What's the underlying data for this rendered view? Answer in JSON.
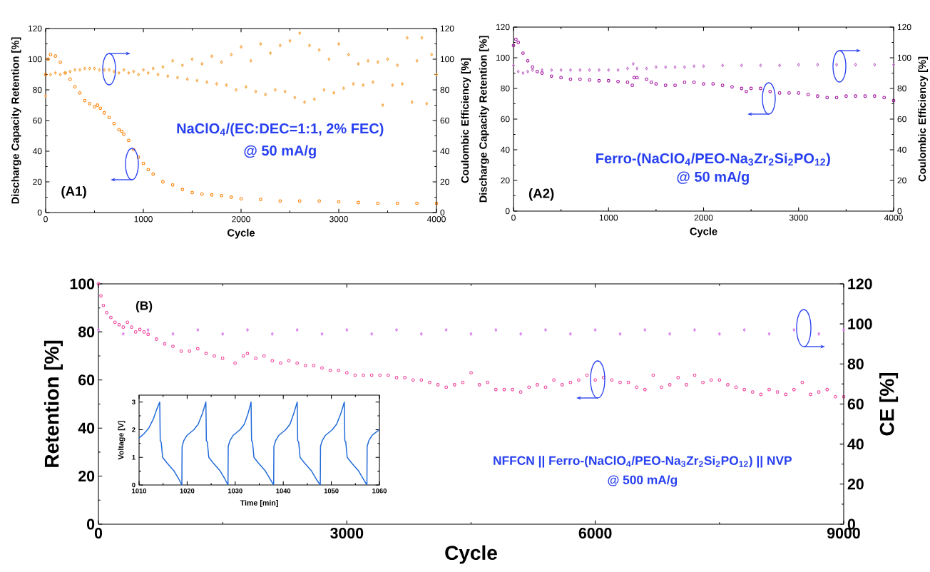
{
  "chart_data": [
    {
      "type": "scatter",
      "title": "(A1)",
      "xlabel": "Cycle",
      "ylabel": "Discharge Capacity Retention [%]",
      "y2label": "Coulombic Efficiency [%]",
      "marker": "circle",
      "annotations": [
        "NaClO$_{4}$/(EC:DEC=1:1, 2% FEC)",
        "@ 50 mA/g"
      ],
      "xlim": [
        0,
        4000
      ],
      "xticks": [
        0,
        1000,
        2000,
        3000,
        4000
      ],
      "ylim": [
        0,
        120
      ],
      "yticks": [
        0,
        20,
        40,
        60,
        80,
        100,
        120
      ],
      "y2lim": [
        0,
        120
      ],
      "y2ticks": [
        0,
        20,
        40,
        60,
        80,
        100,
        120
      ],
      "series": [
        {
          "color": "#ff8000",
          "x": [
            0,
            25,
            50,
            100,
            150,
            200,
            250,
            300,
            350,
            400,
            450,
            500,
            530,
            560,
            600,
            650,
            700,
            750,
            780,
            800,
            850,
            900,
            950,
            1000,
            1050,
            1100,
            1200,
            1300,
            1400,
            1500,
            1600,
            1700,
            1800,
            1900,
            2000,
            2200,
            2400,
            2600,
            2800,
            3000,
            3200,
            3400,
            3600,
            3800,
            4000
          ],
          "values": [
            90,
            100,
            103,
            102,
            98,
            91,
            87,
            82,
            78,
            73,
            71,
            69,
            70,
            68,
            65,
            62,
            58,
            54,
            53,
            51,
            47,
            41,
            36,
            32,
            28,
            25,
            20,
            18,
            15,
            13,
            12,
            11.5,
            11,
            10,
            9,
            8.5,
            7.5,
            7.5,
            7.5,
            7,
            6.5,
            6,
            6,
            6,
            6
          ]
        },
        {
          "color": "#f5a540",
          "marker": "diamond",
          "axis": "y2",
          "x": [
            0,
            50,
            100,
            150,
            200,
            250,
            300,
            350,
            400,
            450,
            500,
            550,
            600,
            650,
            700,
            750,
            800,
            850,
            900,
            950,
            1000,
            1050,
            1100,
            1150,
            1200,
            1250,
            1300,
            1350,
            1400,
            1450,
            1500,
            1550,
            1600,
            1650,
            1700,
            1750,
            1800,
            1850,
            1900,
            1950,
            2000,
            2050,
            2100,
            2150,
            2200,
            2250,
            2300,
            2350,
            2400,
            2450,
            2500,
            2550,
            2600,
            2650,
            2700,
            2750,
            2800,
            2850,
            2900,
            2950,
            3000,
            3050,
            3100,
            3150,
            3200,
            3250,
            3300,
            3350,
            3400,
            3450,
            3500,
            3550,
            3600,
            3650,
            3700,
            3750,
            3800,
            3850,
            3900,
            3950,
            4000
          ],
          "values": [
            76,
            90,
            91,
            90,
            91,
            92,
            93,
            93,
            94,
            94,
            94,
            93,
            93,
            93,
            92,
            91,
            93,
            91,
            92,
            90,
            93,
            91,
            94,
            90,
            95,
            89,
            99,
            88,
            96,
            87,
            100,
            86,
            97,
            85,
            102,
            84,
            98,
            83,
            103,
            80,
            108,
            82,
            99,
            79,
            110,
            77,
            104,
            80,
            109,
            79,
            112,
            75,
            117,
            72,
            109,
            74,
            106,
            80,
            100,
            78,
            110,
            81,
            103,
            84,
            97,
            83,
            99,
            85,
            98,
            70,
            100,
            83,
            96,
            84,
            114,
            72,
            99,
            114,
            71,
            103,
            90
          ]
        }
      ]
    },
    {
      "type": "scatter",
      "title": "(A2)",
      "xlabel": "Cycle",
      "ylabel": "Discharge Capacity Retention [%]",
      "y2label": "Coulombic Efficiency [%]",
      "marker": "circle",
      "annotations": [
        "Ferro-(NaClO$_{4}$/PEO-Na$_{3}$Zr$_{2}$Si$_{2}$PO$_{12}$)",
        "@ 50 mA/g"
      ],
      "xlim": [
        0,
        4000
      ],
      "xticks": [
        0,
        1000,
        2000,
        3000,
        4000
      ],
      "ylim": [
        0,
        120
      ],
      "yticks": [
        0,
        20,
        40,
        60,
        80,
        100,
        120
      ],
      "y2lim": [
        0,
        120
      ],
      "y2ticks": [
        0,
        20,
        40,
        60,
        80,
        100,
        120
      ],
      "series": [
        {
          "color": "#a3129f",
          "x": [
            0,
            25,
            50,
            100,
            150,
            200,
            250,
            300,
            400,
            500,
            600,
            700,
            800,
            900,
            1000,
            1100,
            1200,
            1250,
            1270,
            1300,
            1400,
            1450,
            1500,
            1600,
            1700,
            1800,
            1900,
            2000,
            2100,
            2200,
            2300,
            2400,
            2450,
            2500,
            2600,
            2700,
            2800,
            2900,
            3000,
            3100,
            3200,
            3300,
            3400,
            3500,
            3600,
            3700,
            3800,
            3900,
            4000
          ],
          "values": [
            108,
            112,
            110,
            103,
            98,
            94,
            91,
            90,
            88,
            87,
            86,
            86,
            85.5,
            85,
            85,
            84.5,
            84,
            82,
            87,
            87,
            86,
            84,
            83,
            82,
            82,
            84,
            84,
            83,
            83,
            82,
            81,
            80,
            78,
            80,
            80,
            78,
            77,
            77,
            77,
            76,
            75,
            74,
            74,
            75,
            75,
            75,
            75,
            74,
            72
          ]
        },
        {
          "color": "#c476cc",
          "marker": "diamond",
          "axis": "y2",
          "x": [
            0,
            50,
            100,
            150,
            200,
            300,
            400,
            500,
            600,
            700,
            800,
            900,
            1000,
            1100,
            1200,
            1260,
            1300,
            1400,
            1500,
            1600,
            1700,
            1800,
            1900,
            2000,
            2200,
            2400,
            2600,
            2800,
            3000,
            3200,
            3400,
            3600,
            3800,
            4000
          ],
          "values": [
            95,
            91,
            90,
            91,
            92,
            92,
            92,
            92,
            92,
            92,
            92,
            92,
            92,
            92,
            93,
            96,
            93,
            93,
            94,
            94,
            94,
            94,
            94.5,
            94.5,
            95,
            95,
            95,
            95,
            95.5,
            95.5,
            95.5,
            95.5,
            95.5,
            95.5
          ]
        }
      ]
    },
    {
      "type": "scatter",
      "title": "(B)",
      "xlabel": "Cycle",
      "ylabel": "Retention [%]",
      "y2label": "CE [%]",
      "marker": "circle",
      "annotations": [
        "NFFCN || Ferro-(NaClO$_{4}$/PEO-Na$_{3}$Zr$_{2}$Si$_{2}$PO$_{12}$) || NVP",
        "@ 500 mA/g"
      ],
      "xlim": [
        0,
        9000
      ],
      "xticks": [
        0,
        3000,
        6000,
        9000
      ],
      "ylim": [
        0,
        100
      ],
      "yticks": [
        0,
        20,
        40,
        60,
        80,
        100
      ],
      "y2lim": [
        0,
        120
      ],
      "y2ticks": [
        0,
        20,
        40,
        60,
        80,
        100,
        120
      ],
      "series": [
        {
          "color": "#f0449c",
          "x": [
            0,
            30,
            60,
            100,
            150,
            200,
            250,
            300,
            350,
            400,
            450,
            500,
            550,
            600,
            700,
            800,
            900,
            1000,
            1100,
            1200,
            1300,
            1400,
            1500,
            1650,
            1750,
            1800,
            1900,
            2000,
            2100,
            2200,
            2300,
            2400,
            2500,
            2600,
            2700,
            2800,
            2900,
            3000,
            3100,
            3200,
            3300,
            3400,
            3500,
            3600,
            3700,
            3800,
            3900,
            4000,
            4100,
            4200,
            4300,
            4400,
            4500,
            4600,
            4700,
            4800,
            4900,
            5000,
            5100,
            5200,
            5300,
            5400,
            5500,
            5600,
            5700,
            5800,
            5900,
            6000,
            6100,
            6200,
            6300,
            6400,
            6500,
            6600,
            6700,
            6800,
            6900,
            7000,
            7100,
            7200,
            7300,
            7400,
            7500,
            7600,
            7700,
            7800,
            7900,
            8000,
            8100,
            8200,
            8300,
            8400,
            8500,
            8600,
            8700,
            8800,
            8900,
            9000
          ],
          "values": [
            100,
            95,
            91,
            88,
            86,
            84,
            83,
            82,
            84,
            82,
            80,
            81,
            80,
            79,
            77,
            75,
            74,
            72,
            72,
            73,
            71,
            70,
            69,
            67,
            70,
            71,
            69,
            70,
            68,
            67,
            68,
            67,
            66,
            66,
            65,
            64,
            64,
            63,
            62,
            62,
            62,
            62,
            62,
            61,
            61,
            60,
            60,
            59,
            58,
            57,
            58,
            59,
            63,
            58,
            59,
            56,
            56,
            56,
            55,
            57,
            58,
            57,
            60,
            58,
            59,
            60,
            62,
            60,
            61,
            60,
            59,
            59,
            57,
            56,
            62,
            57,
            58,
            61,
            58,
            62,
            59,
            60,
            60,
            58,
            57,
            56,
            55,
            54,
            56,
            55,
            54,
            56,
            59,
            54,
            55,
            56,
            53,
            53
          ]
        },
        {
          "color": "#d878ec",
          "marker": "diamond",
          "axis": "y2",
          "x": [
            0,
            300,
            600,
            900,
            1200,
            1500,
            1800,
            2100,
            2400,
            2700,
            3000,
            3300,
            3600,
            3900,
            4200,
            4500,
            4800,
            5100,
            5400,
            5700,
            6000,
            6300,
            6600,
            6900,
            7200,
            7500,
            7800,
            8100,
            8400,
            8700,
            9000
          ],
          "values": [
            97,
            95,
            97,
            95,
            97,
            95,
            97,
            95,
            97,
            95,
            97,
            95,
            97,
            95,
            97,
            95,
            97,
            95,
            97,
            95,
            97,
            95,
            97,
            95,
            97,
            95,
            97,
            95,
            97,
            95,
            97
          ]
        }
      ]
    },
    {
      "type": "line",
      "xlabel": "Time [min]",
      "ylabel": "Voltage [V]",
      "xlim": [
        1010,
        1060
      ],
      "xticks": [
        1010,
        1020,
        1030,
        1040,
        1050,
        1060
      ],
      "ylim": [
        0,
        3.25
      ],
      "yticks": [
        0,
        1,
        2,
        3
      ],
      "series": [
        {
          "color": "#1f6ad8",
          "x": [
            1010,
            1011,
            1012,
            1013,
            1013.7,
            1014.3,
            1014.4,
            1014.6,
            1014.9,
            1015.8,
            1017.3,
            1018.3,
            1018.9,
            1018.95,
            1019.3,
            1020.0,
            1021.4,
            1022.3,
            1023.2,
            1023.9,
            1024.0,
            1024.2,
            1024.5,
            1025.4,
            1026.9,
            1027.9,
            1028.5,
            1028.55,
            1028.9,
            1029.6,
            1031.0,
            1031.9,
            1032.7,
            1033.3,
            1033.4,
            1033.6,
            1033.9,
            1034.8,
            1036.3,
            1037.3,
            1038.0,
            1038.05,
            1038.4,
            1039.1,
            1040.5,
            1041.4,
            1042.2,
            1042.9,
            1043.0,
            1043.2,
            1043.5,
            1044.4,
            1045.9,
            1046.9,
            1047.7,
            1047.75,
            1048.1,
            1048.8,
            1050.2,
            1051.1,
            1052.0,
            1052.7,
            1052.8,
            1053.0,
            1053.3,
            1054.2,
            1055.7,
            1056.7,
            1057.4,
            1057.45,
            1057.8,
            1058.5,
            1060
          ],
          "values": [
            1.7,
            1.85,
            2.05,
            2.4,
            2.75,
            3.0,
            1.6,
            1.55,
            1.0,
            0.8,
            0.5,
            0.2,
            0,
            1.4,
            1.6,
            1.8,
            2.0,
            2.2,
            2.6,
            3.0,
            1.6,
            1.55,
            1.0,
            0.8,
            0.5,
            0.2,
            0,
            1.4,
            1.6,
            1.8,
            2.0,
            2.2,
            2.6,
            3.0,
            1.6,
            1.55,
            1.0,
            0.8,
            0.5,
            0.2,
            0,
            1.4,
            1.6,
            1.8,
            2.0,
            2.2,
            2.6,
            3.0,
            1.6,
            1.55,
            1.0,
            0.8,
            0.5,
            0.2,
            0,
            1.4,
            1.6,
            1.8,
            2.0,
            2.2,
            2.6,
            3.0,
            1.6,
            1.55,
            1.0,
            0.8,
            0.5,
            0.2,
            0,
            1.4,
            1.6,
            1.8,
            2.0
          ]
        }
      ]
    }
  ]
}
